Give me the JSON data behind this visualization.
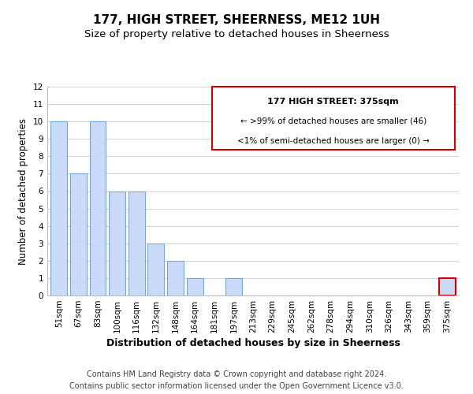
{
  "title": "177, HIGH STREET, SHEERNESS, ME12 1UH",
  "subtitle": "Size of property relative to detached houses in Sheerness",
  "xlabel": "Distribution of detached houses by size in Sheerness",
  "ylabel": "Number of detached properties",
  "bar_labels": [
    "51sqm",
    "67sqm",
    "83sqm",
    "100sqm",
    "116sqm",
    "132sqm",
    "148sqm",
    "164sqm",
    "181sqm",
    "197sqm",
    "213sqm",
    "229sqm",
    "245sqm",
    "262sqm",
    "278sqm",
    "294sqm",
    "310sqm",
    "326sqm",
    "343sqm",
    "359sqm",
    "375sqm"
  ],
  "bar_values": [
    10,
    7,
    10,
    6,
    6,
    3,
    2,
    1,
    0,
    1,
    0,
    0,
    0,
    0,
    0,
    0,
    0,
    0,
    0,
    0,
    1
  ],
  "bar_color": "#c9daf8",
  "bar_edge_color": "#6fa8dc",
  "highlight_bar_index": 20,
  "highlight_bar_edge_color": "#cc0000",
  "ylim": [
    0,
    12
  ],
  "yticks": [
    0,
    1,
    2,
    3,
    4,
    5,
    6,
    7,
    8,
    9,
    10,
    11,
    12
  ],
  "legend_title": "177 HIGH STREET: 375sqm",
  "legend_line1": "← >99% of detached houses are smaller (46)",
  "legend_line2": "<1% of semi-detached houses are larger (0) →",
  "legend_edge_color": "#cc0000",
  "footer_line1": "Contains HM Land Registry data © Crown copyright and database right 2024.",
  "footer_line2": "Contains public sector information licensed under the Open Government Licence v3.0.",
  "title_fontsize": 11,
  "subtitle_fontsize": 9.5,
  "xlabel_fontsize": 9,
  "ylabel_fontsize": 8.5,
  "tick_fontsize": 7.5,
  "legend_title_fontsize": 8,
  "legend_text_fontsize": 7.5,
  "footer_fontsize": 7,
  "grid_color": "#cccccc",
  "background_color": "#ffffff"
}
